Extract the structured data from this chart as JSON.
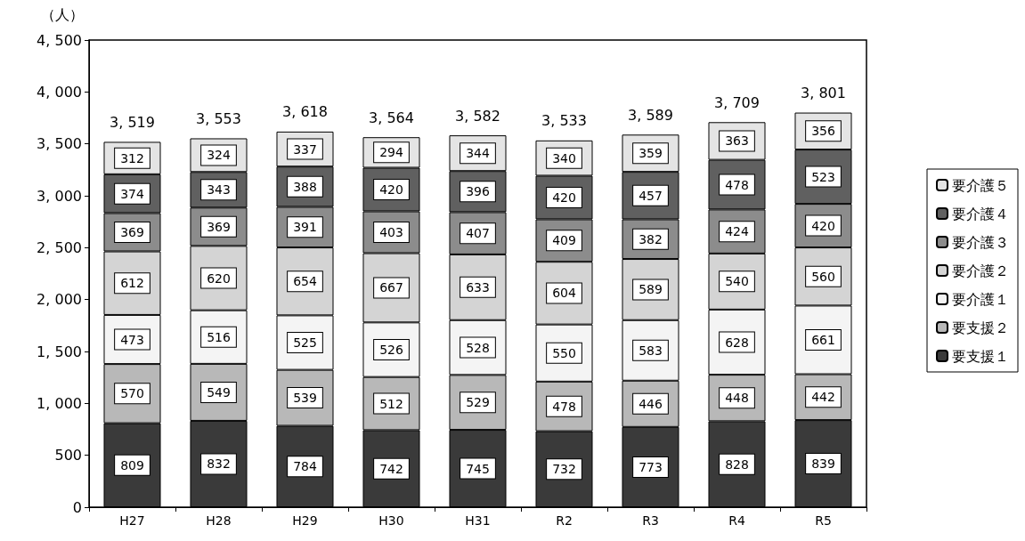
{
  "chart_data": {
    "type": "bar",
    "stacked": true,
    "ylabel": "（人）",
    "categories": [
      "H27",
      "H28",
      "H29",
      "H30",
      "H31",
      "R2",
      "R3",
      "R4",
      "R5"
    ],
    "series": [
      {
        "name": "要支援１",
        "color": "#3a3a3a",
        "values": [
          809,
          832,
          784,
          742,
          745,
          732,
          773,
          828,
          839
        ]
      },
      {
        "name": "要支援２",
        "color": "#b8b8b8",
        "values": [
          570,
          549,
          539,
          512,
          529,
          478,
          446,
          448,
          442
        ]
      },
      {
        "name": "要介護１",
        "color": "#f4f4f4",
        "values": [
          473,
          516,
          525,
          526,
          528,
          550,
          583,
          628,
          661
        ]
      },
      {
        "name": "要介護２",
        "color": "#d4d4d4",
        "values": [
          612,
          620,
          654,
          667,
          633,
          604,
          589,
          540,
          560
        ]
      },
      {
        "name": "要介護３",
        "color": "#8c8c8c",
        "values": [
          369,
          369,
          391,
          403,
          407,
          409,
          382,
          424,
          420
        ]
      },
      {
        "name": "要介護４",
        "color": "#606060",
        "values": [
          374,
          343,
          388,
          420,
          396,
          420,
          457,
          478,
          523
        ]
      },
      {
        "name": "要介護５",
        "color": "#e4e4e4",
        "values": [
          312,
          324,
          337,
          294,
          344,
          340,
          359,
          363,
          356
        ]
      }
    ],
    "totals": [
      "3, 519",
      "3, 553",
      "3, 618",
      "3, 564",
      "3, 582",
      "3, 533",
      "3, 589",
      "3, 709",
      "3, 801"
    ],
    "data_labels": true,
    "ylim": [
      0,
      4500
    ],
    "yticks": [
      0,
      500,
      {
        "value": 1000,
        "label": "1, 000"
      },
      {
        "value": 1500,
        "label": "1, 500"
      },
      {
        "value": 2000,
        "label": "2, 000"
      },
      {
        "value": 2500,
        "label": "2, 500"
      },
      {
        "value": 3000,
        "label": "3, 000"
      },
      {
        "value": 3500,
        "label": "3, 500"
      },
      {
        "value": 4000,
        "label": "4, 000"
      },
      {
        "value": 4500,
        "label": "4, 500"
      }
    ],
    "grid": false,
    "legend": "right"
  }
}
